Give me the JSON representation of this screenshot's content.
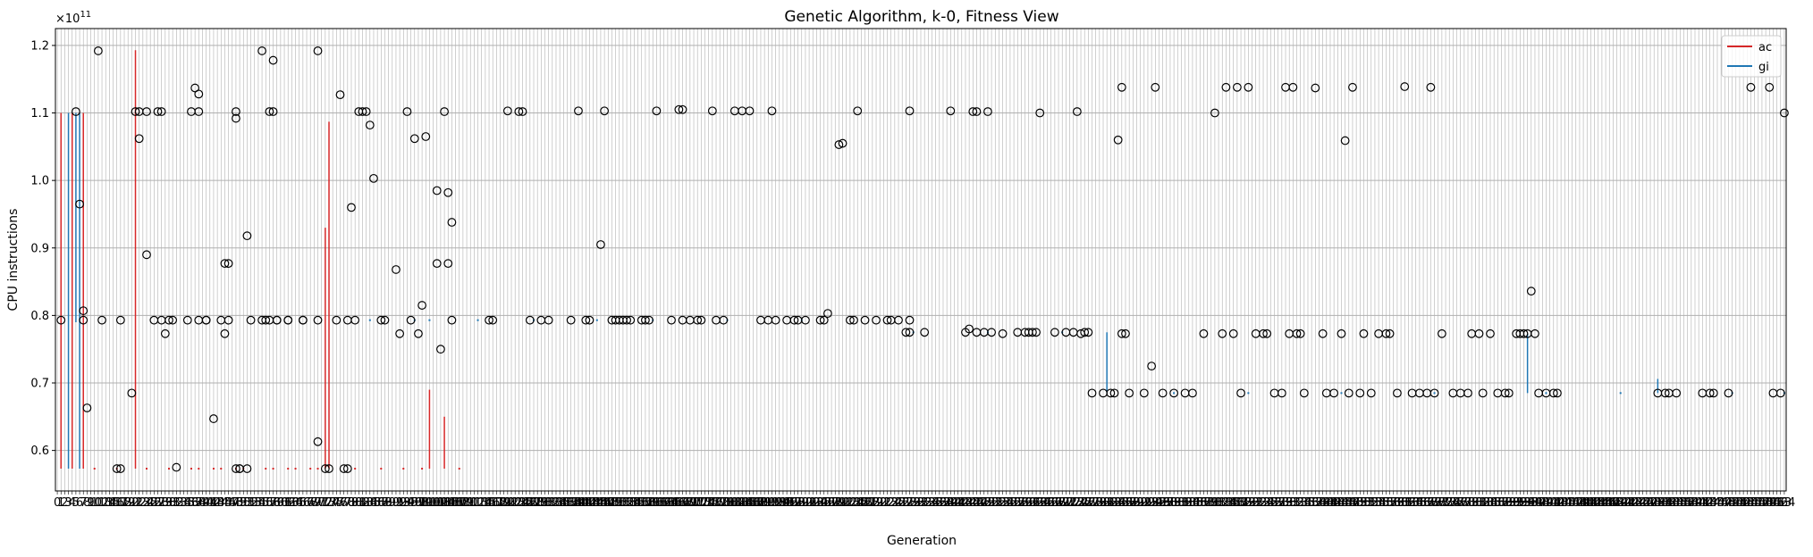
{
  "chart_data": {
    "type": "scatter",
    "title": "Genetic Algorithm, k-0, Fitness View",
    "xlabel": "Generation",
    "ylabel": "CPU instructions",
    "y_offset_text": "×10",
    "y_offset_exponent": "11",
    "y_multiplier": 100000000000,
    "xlim": [
      -0.5,
      464.5
    ],
    "ylim": [
      0.54,
      1.225
    ],
    "yticks": [
      0.6,
      0.7,
      0.8,
      0.9,
      1.0,
      1.1,
      1.2
    ],
    "ytick_labels": [
      "0.6",
      "0.7",
      "0.8",
      "0.9",
      "1.0",
      "1.1",
      "1.2"
    ],
    "x_last_tick_label": "464",
    "grid": true,
    "legend_position": "top-right",
    "colors": {
      "ac": "#d62728",
      "gi": "#1f77b4",
      "outlier": "#000000",
      "grid": "#b0b0b0"
    },
    "series": [
      {
        "name": "ac",
        "color": "#d62728",
        "segments": [
          {
            "x": 1,
            "low": 0.573,
            "high": 1.1
          },
          {
            "x": 4,
            "low": 0.573,
            "high": 1.1
          },
          {
            "x": 7,
            "low": 0.573,
            "high": 1.1
          },
          {
            "x": 21,
            "low": 0.573,
            "high": 1.193
          },
          {
            "x": 72,
            "low": 0.573,
            "high": 0.93
          },
          {
            "x": 73,
            "low": 0.573,
            "high": 1.087
          },
          {
            "x": 100,
            "low": 0.573,
            "high": 0.69
          },
          {
            "x": 104,
            "low": 0.573,
            "high": 0.65
          }
        ],
        "dots": [
          {
            "x": 10,
            "y": 0.573
          },
          {
            "x": 16,
            "y": 0.573
          },
          {
            "x": 24,
            "y": 0.573
          },
          {
            "x": 30,
            "y": 0.573
          },
          {
            "x": 36,
            "y": 0.573
          },
          {
            "x": 38,
            "y": 0.573
          },
          {
            "x": 42,
            "y": 0.573
          },
          {
            "x": 44,
            "y": 0.573
          },
          {
            "x": 48,
            "y": 0.573
          },
          {
            "x": 50,
            "y": 0.573
          },
          {
            "x": 56,
            "y": 0.573
          },
          {
            "x": 58,
            "y": 0.573
          },
          {
            "x": 62,
            "y": 0.573
          },
          {
            "x": 64,
            "y": 0.573
          },
          {
            "x": 68,
            "y": 0.573
          },
          {
            "x": 70,
            "y": 0.573
          },
          {
            "x": 80,
            "y": 0.573
          },
          {
            "x": 87,
            "y": 0.573
          },
          {
            "x": 93,
            "y": 0.573
          },
          {
            "x": 98,
            "y": 0.573
          },
          {
            "x": 108,
            "y": 0.573
          }
        ]
      },
      {
        "name": "gi",
        "color": "#1f77b4",
        "segments": [
          {
            "x": 3,
            "low": 0.573,
            "high": 1.1
          },
          {
            "x": 5,
            "low": 0.79,
            "high": 1.1
          },
          {
            "x": 6,
            "low": 0.573,
            "high": 1.1
          },
          {
            "x": 282,
            "low": 0.685,
            "high": 0.775
          },
          {
            "x": 395,
            "low": 0.685,
            "high": 0.773
          },
          {
            "x": 430,
            "low": 0.685,
            "high": 0.706
          }
        ],
        "dots": [
          {
            "x": 84,
            "y": 0.793
          },
          {
            "x": 96,
            "y": 0.793
          },
          {
            "x": 100,
            "y": 0.793
          },
          {
            "x": 113,
            "y": 0.793
          },
          {
            "x": 128,
            "y": 0.793
          },
          {
            "x": 145,
            "y": 0.793
          },
          {
            "x": 160,
            "y": 0.793
          },
          {
            "x": 180,
            "y": 0.793
          },
          {
            "x": 200,
            "y": 0.793
          },
          {
            "x": 230,
            "y": 0.775
          },
          {
            "x": 250,
            "y": 0.775
          },
          {
            "x": 270,
            "y": 0.775
          },
          {
            "x": 300,
            "y": 0.685
          },
          {
            "x": 320,
            "y": 0.685
          },
          {
            "x": 345,
            "y": 0.685
          },
          {
            "x": 370,
            "y": 0.685
          },
          {
            "x": 400,
            "y": 0.685
          },
          {
            "x": 420,
            "y": 0.685
          },
          {
            "x": 450,
            "y": 0.685
          },
          {
            "x": 464,
            "y": 0.685
          }
        ]
      }
    ],
    "outliers": [
      {
        "x": 1,
        "y": 0.793
      },
      {
        "x": 5,
        "y": 1.102
      },
      {
        "x": 6,
        "y": 0.965
      },
      {
        "x": 7,
        "y": 0.807
      },
      {
        "x": 7,
        "y": 0.793
      },
      {
        "x": 8,
        "y": 0.663
      },
      {
        "x": 11,
        "y": 1.192
      },
      {
        "x": 12,
        "y": 0.793
      },
      {
        "x": 16,
        "y": 0.573
      },
      {
        "x": 17,
        "y": 0.573
      },
      {
        "x": 17,
        "y": 0.793
      },
      {
        "x": 20,
        "y": 0.685
      },
      {
        "x": 21,
        "y": 1.102
      },
      {
        "x": 22,
        "y": 1.102
      },
      {
        "x": 22,
        "y": 1.062
      },
      {
        "x": 24,
        "y": 1.102
      },
      {
        "x": 24,
        "y": 0.89
      },
      {
        "x": 26,
        "y": 0.793
      },
      {
        "x": 27,
        "y": 1.102
      },
      {
        "x": 28,
        "y": 0.793
      },
      {
        "x": 28,
        "y": 1.102
      },
      {
        "x": 29,
        "y": 0.773
      },
      {
        "x": 30,
        "y": 0.793
      },
      {
        "x": 31,
        "y": 0.793
      },
      {
        "x": 32,
        "y": 0.575
      },
      {
        "x": 35,
        "y": 0.793
      },
      {
        "x": 36,
        "y": 1.102
      },
      {
        "x": 37,
        "y": 1.137
      },
      {
        "x": 38,
        "y": 1.102
      },
      {
        "x": 38,
        "y": 0.793
      },
      {
        "x": 38,
        "y": 1.128
      },
      {
        "x": 40,
        "y": 0.793
      },
      {
        "x": 40,
        "y": 0.793
      },
      {
        "x": 42,
        "y": 0.647
      },
      {
        "x": 44,
        "y": 0.793
      },
      {
        "x": 45,
        "y": 0.877
      },
      {
        "x": 45,
        "y": 0.773
      },
      {
        "x": 46,
        "y": 0.793
      },
      {
        "x": 46,
        "y": 0.877
      },
      {
        "x": 48,
        "y": 0.573
      },
      {
        "x": 48,
        "y": 1.092
      },
      {
        "x": 48,
        "y": 1.102
      },
      {
        "x": 49,
        "y": 0.573
      },
      {
        "x": 49,
        "y": 0.573
      },
      {
        "x": 51,
        "y": 0.918
      },
      {
        "x": 51,
        "y": 0.573
      },
      {
        "x": 52,
        "y": 0.793
      },
      {
        "x": 55,
        "y": 0.793
      },
      {
        "x": 55,
        "y": 1.192
      },
      {
        "x": 56,
        "y": 0.793
      },
      {
        "x": 57,
        "y": 1.102
      },
      {
        "x": 57,
        "y": 0.793
      },
      {
        "x": 58,
        "y": 1.178
      },
      {
        "x": 58,
        "y": 1.102
      },
      {
        "x": 59,
        "y": 0.793
      },
      {
        "x": 59,
        "y": 0.793
      },
      {
        "x": 62,
        "y": 0.793
      },
      {
        "x": 62,
        "y": 0.793
      },
      {
        "x": 66,
        "y": 0.793
      },
      {
        "x": 66,
        "y": 0.793
      },
      {
        "x": 70,
        "y": 1.192
      },
      {
        "x": 70,
        "y": 0.613
      },
      {
        "x": 70,
        "y": 0.793
      },
      {
        "x": 72,
        "y": 0.573
      },
      {
        "x": 73,
        "y": 0.573
      },
      {
        "x": 75,
        "y": 0.793
      },
      {
        "x": 76,
        "y": 1.127
      },
      {
        "x": 77,
        "y": 0.573
      },
      {
        "x": 78,
        "y": 0.573
      },
      {
        "x": 78,
        "y": 0.793
      },
      {
        "x": 79,
        "y": 0.96
      },
      {
        "x": 80,
        "y": 0.793
      },
      {
        "x": 81,
        "y": 1.102
      },
      {
        "x": 82,
        "y": 1.102
      },
      {
        "x": 83,
        "y": 1.102
      },
      {
        "x": 84,
        "y": 1.082
      },
      {
        "x": 85,
        "y": 1.003
      },
      {
        "x": 87,
        "y": 0.793
      },
      {
        "x": 88,
        "y": 0.793
      },
      {
        "x": 91,
        "y": 0.868
      },
      {
        "x": 92,
        "y": 0.773
      },
      {
        "x": 94,
        "y": 1.102
      },
      {
        "x": 95,
        "y": 0.793
      },
      {
        "x": 96,
        "y": 1.062
      },
      {
        "x": 97,
        "y": 0.773
      },
      {
        "x": 98,
        "y": 0.815
      },
      {
        "x": 99,
        "y": 1.065
      },
      {
        "x": 102,
        "y": 0.985
      },
      {
        "x": 102,
        "y": 0.877
      },
      {
        "x": 103,
        "y": 0.75
      },
      {
        "x": 104,
        "y": 1.102
      },
      {
        "x": 105,
        "y": 0.982
      },
      {
        "x": 105,
        "y": 0.877
      },
      {
        "x": 106,
        "y": 0.793
      },
      {
        "x": 106,
        "y": 0.938
      },
      {
        "x": 116,
        "y": 0.793
      },
      {
        "x": 117,
        "y": 0.793
      },
      {
        "x": 121,
        "y": 1.103
      },
      {
        "x": 124,
        "y": 1.102
      },
      {
        "x": 125,
        "y": 1.102
      },
      {
        "x": 127,
        "y": 0.793
      },
      {
        "x": 130,
        "y": 0.793
      },
      {
        "x": 132,
        "y": 0.793
      },
      {
        "x": 138,
        "y": 0.793
      },
      {
        "x": 140,
        "y": 1.103
      },
      {
        "x": 142,
        "y": 0.793
      },
      {
        "x": 143,
        "y": 0.793
      },
      {
        "x": 146,
        "y": 0.905
      },
      {
        "x": 147,
        "y": 1.103
      },
      {
        "x": 149,
        "y": 0.793
      },
      {
        "x": 150,
        "y": 0.793
      },
      {
        "x": 151,
        "y": 0.793
      },
      {
        "x": 152,
        "y": 0.793
      },
      {
        "x": 153,
        "y": 0.793
      },
      {
        "x": 154,
        "y": 0.793
      },
      {
        "x": 157,
        "y": 0.793
      },
      {
        "x": 158,
        "y": 0.793
      },
      {
        "x": 159,
        "y": 0.793
      },
      {
        "x": 161,
        "y": 1.103
      },
      {
        "x": 165,
        "y": 0.793
      },
      {
        "x": 167,
        "y": 1.105
      },
      {
        "x": 168,
        "y": 0.793
      },
      {
        "x": 168,
        "y": 1.105
      },
      {
        "x": 170,
        "y": 0.793
      },
      {
        "x": 172,
        "y": 0.793
      },
      {
        "x": 173,
        "y": 0.793
      },
      {
        "x": 176,
        "y": 1.103
      },
      {
        "x": 177,
        "y": 0.793
      },
      {
        "x": 179,
        "y": 0.793
      },
      {
        "x": 182,
        "y": 1.103
      },
      {
        "x": 184,
        "y": 1.103
      },
      {
        "x": 186,
        "y": 1.103
      },
      {
        "x": 189,
        "y": 0.793
      },
      {
        "x": 191,
        "y": 0.793
      },
      {
        "x": 192,
        "y": 1.103
      },
      {
        "x": 193,
        "y": 0.793
      },
      {
        "x": 196,
        "y": 0.793
      },
      {
        "x": 198,
        "y": 0.793
      },
      {
        "x": 199,
        "y": 0.793
      },
      {
        "x": 201,
        "y": 0.793
      },
      {
        "x": 205,
        "y": 0.793
      },
      {
        "x": 206,
        "y": 0.793
      },
      {
        "x": 207,
        "y": 0.803
      },
      {
        "x": 210,
        "y": 1.053
      },
      {
        "x": 211,
        "y": 1.055
      },
      {
        "x": 213,
        "y": 0.793
      },
      {
        "x": 214,
        "y": 0.793
      },
      {
        "x": 215,
        "y": 1.103
      },
      {
        "x": 217,
        "y": 0.793
      },
      {
        "x": 220,
        "y": 0.793
      },
      {
        "x": 223,
        "y": 0.793
      },
      {
        "x": 224,
        "y": 0.793
      },
      {
        "x": 226,
        "y": 0.793
      },
      {
        "x": 228,
        "y": 0.775
      },
      {
        "x": 229,
        "y": 0.775
      },
      {
        "x": 229,
        "y": 0.793
      },
      {
        "x": 229,
        "y": 1.103
      },
      {
        "x": 233,
        "y": 0.775
      },
      {
        "x": 240,
        "y": 1.103
      },
      {
        "x": 244,
        "y": 0.775
      },
      {
        "x": 245,
        "y": 0.78
      },
      {
        "x": 246,
        "y": 1.102
      },
      {
        "x": 247,
        "y": 0.775
      },
      {
        "x": 247,
        "y": 1.102
      },
      {
        "x": 249,
        "y": 0.775
      },
      {
        "x": 250,
        "y": 1.102
      },
      {
        "x": 251,
        "y": 0.775
      },
      {
        "x": 254,
        "y": 0.773
      },
      {
        "x": 258,
        "y": 0.775
      },
      {
        "x": 260,
        "y": 0.775
      },
      {
        "x": 261,
        "y": 0.775
      },
      {
        "x": 262,
        "y": 0.775
      },
      {
        "x": 263,
        "y": 0.775
      },
      {
        "x": 264,
        "y": 1.1
      },
      {
        "x": 268,
        "y": 0.775
      },
      {
        "x": 271,
        "y": 0.775
      },
      {
        "x": 273,
        "y": 0.775
      },
      {
        "x": 274,
        "y": 1.102
      },
      {
        "x": 275,
        "y": 0.773
      },
      {
        "x": 276,
        "y": 0.775
      },
      {
        "x": 277,
        "y": 0.775
      },
      {
        "x": 278,
        "y": 0.685
      },
      {
        "x": 281,
        "y": 0.685
      },
      {
        "x": 283,
        "y": 0.685
      },
      {
        "x": 284,
        "y": 0.685
      },
      {
        "x": 285,
        "y": 1.06
      },
      {
        "x": 286,
        "y": 0.773
      },
      {
        "x": 286,
        "y": 1.138
      },
      {
        "x": 287,
        "y": 0.773
      },
      {
        "x": 288,
        "y": 0.685
      },
      {
        "x": 292,
        "y": 0.685
      },
      {
        "x": 294,
        "y": 0.725
      },
      {
        "x": 295,
        "y": 1.138
      },
      {
        "x": 297,
        "y": 0.685
      },
      {
        "x": 300,
        "y": 0.685
      },
      {
        "x": 303,
        "y": 0.685
      },
      {
        "x": 305,
        "y": 0.685
      },
      {
        "x": 308,
        "y": 0.773
      },
      {
        "x": 311,
        "y": 1.1
      },
      {
        "x": 313,
        "y": 0.773
      },
      {
        "x": 314,
        "y": 1.138
      },
      {
        "x": 316,
        "y": 0.773
      },
      {
        "x": 317,
        "y": 1.138
      },
      {
        "x": 318,
        "y": 0.685
      },
      {
        "x": 320,
        "y": 1.138
      },
      {
        "x": 322,
        "y": 0.773
      },
      {
        "x": 324,
        "y": 0.773
      },
      {
        "x": 325,
        "y": 0.773
      },
      {
        "x": 327,
        "y": 0.685
      },
      {
        "x": 329,
        "y": 0.685
      },
      {
        "x": 330,
        "y": 1.138
      },
      {
        "x": 331,
        "y": 0.773
      },
      {
        "x": 332,
        "y": 1.138
      },
      {
        "x": 333,
        "y": 0.773
      },
      {
        "x": 334,
        "y": 0.773
      },
      {
        "x": 335,
        "y": 0.685
      },
      {
        "x": 338,
        "y": 1.137
      },
      {
        "x": 340,
        "y": 0.773
      },
      {
        "x": 341,
        "y": 0.685
      },
      {
        "x": 343,
        "y": 0.685
      },
      {
        "x": 345,
        "y": 0.773
      },
      {
        "x": 346,
        "y": 1.059
      },
      {
        "x": 347,
        "y": 0.685
      },
      {
        "x": 348,
        "y": 1.138
      },
      {
        "x": 350,
        "y": 0.685
      },
      {
        "x": 351,
        "y": 0.773
      },
      {
        "x": 353,
        "y": 0.685
      },
      {
        "x": 355,
        "y": 0.773
      },
      {
        "x": 357,
        "y": 0.773
      },
      {
        "x": 358,
        "y": 0.773
      },
      {
        "x": 360,
        "y": 0.685
      },
      {
        "x": 362,
        "y": 1.139
      },
      {
        "x": 364,
        "y": 0.685
      },
      {
        "x": 366,
        "y": 0.685
      },
      {
        "x": 368,
        "y": 0.685
      },
      {
        "x": 369,
        "y": 1.138
      },
      {
        "x": 370,
        "y": 0.685
      },
      {
        "x": 372,
        "y": 0.773
      },
      {
        "x": 375,
        "y": 0.685
      },
      {
        "x": 377,
        "y": 0.685
      },
      {
        "x": 379,
        "y": 0.685
      },
      {
        "x": 380,
        "y": 0.773
      },
      {
        "x": 382,
        "y": 0.773
      },
      {
        "x": 383,
        "y": 0.685
      },
      {
        "x": 385,
        "y": 0.773
      },
      {
        "x": 387,
        "y": 0.685
      },
      {
        "x": 389,
        "y": 0.685
      },
      {
        "x": 390,
        "y": 0.685
      },
      {
        "x": 392,
        "y": 0.773
      },
      {
        "x": 393,
        "y": 0.773
      },
      {
        "x": 394,
        "y": 0.773
      },
      {
        "x": 395,
        "y": 0.773
      },
      {
        "x": 396,
        "y": 0.836
      },
      {
        "x": 397,
        "y": 0.773
      },
      {
        "x": 398,
        "y": 0.685
      },
      {
        "x": 400,
        "y": 0.685
      },
      {
        "x": 402,
        "y": 0.685
      },
      {
        "x": 403,
        "y": 0.685
      },
      {
        "x": 430,
        "y": 0.685
      },
      {
        "x": 432,
        "y": 0.685
      },
      {
        "x": 433,
        "y": 0.685
      },
      {
        "x": 435,
        "y": 0.685
      },
      {
        "x": 442,
        "y": 0.685
      },
      {
        "x": 444,
        "y": 0.685
      },
      {
        "x": 445,
        "y": 0.685
      },
      {
        "x": 449,
        "y": 0.685
      },
      {
        "x": 455,
        "y": 1.138
      },
      {
        "x": 460,
        "y": 1.138
      },
      {
        "x": 461,
        "y": 0.685
      },
      {
        "x": 463,
        "y": 0.685
      },
      {
        "x": 464,
        "y": 1.1
      }
    ]
  }
}
